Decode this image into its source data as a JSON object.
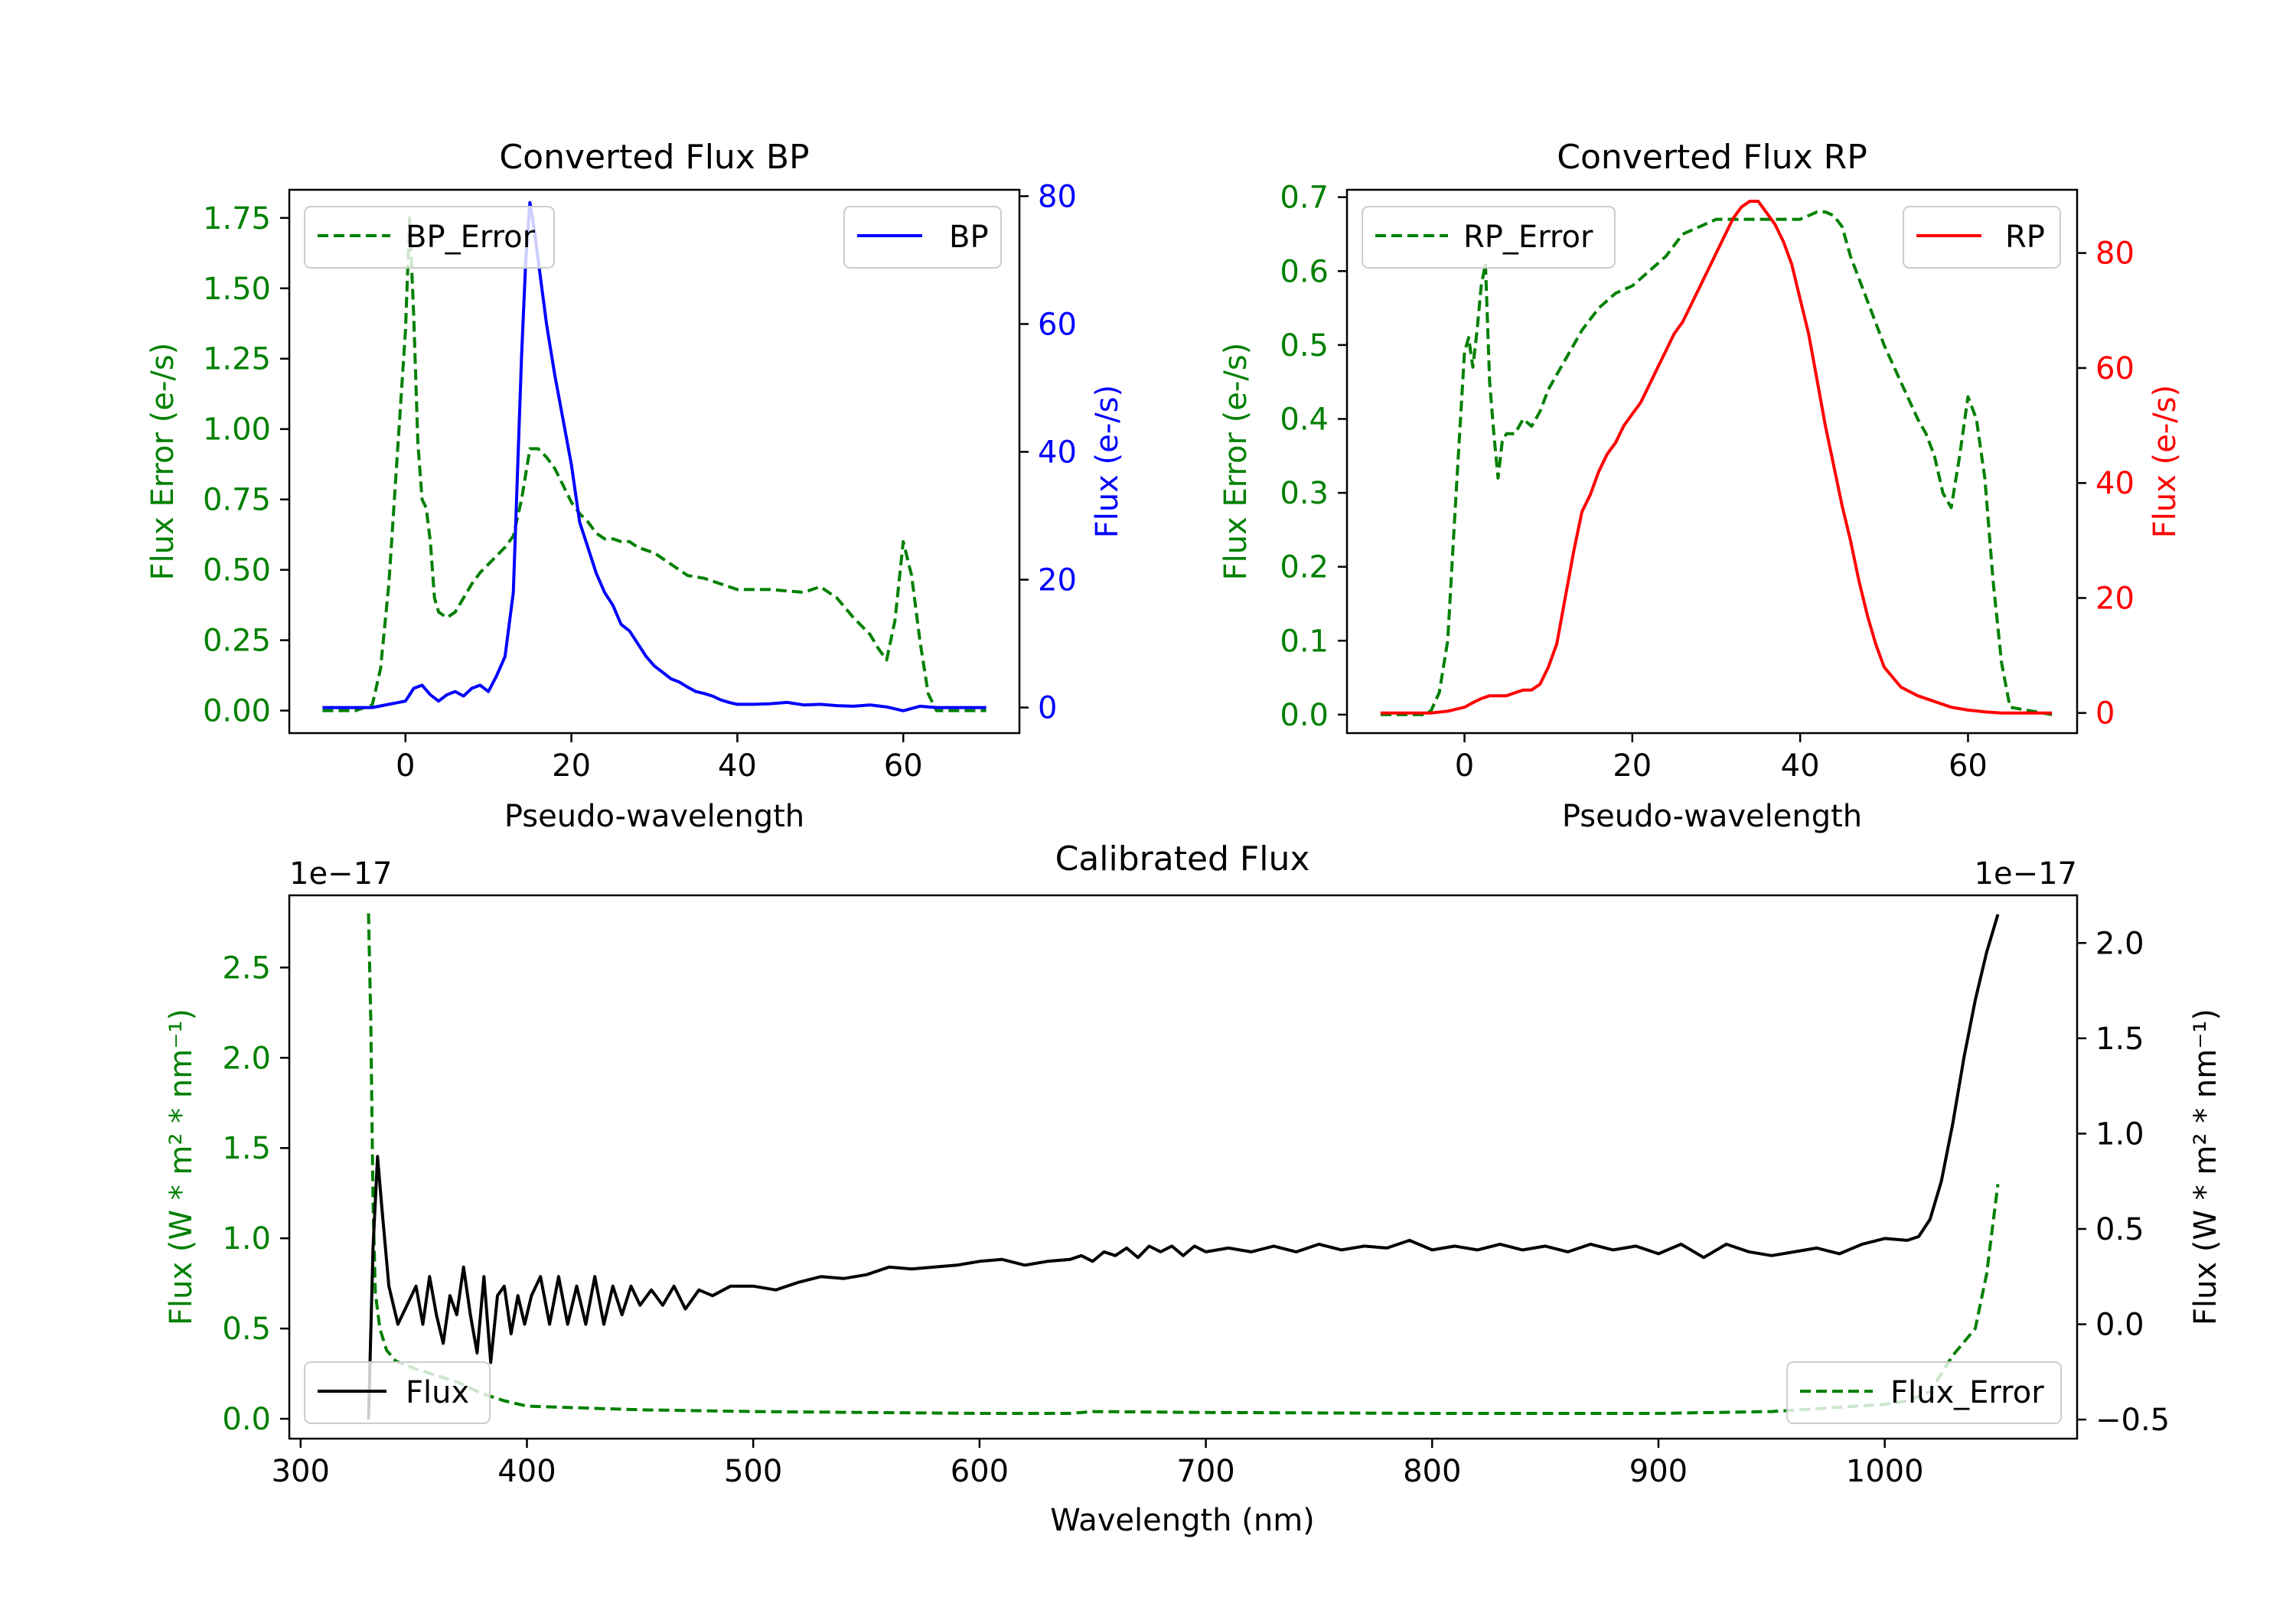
{
  "chart_data": [
    {
      "type": "line",
      "title": "Converted Flux BP",
      "xlabel": "Pseudo-wavelength",
      "ylabel_left": "Flux Error (e-/s)",
      "ylabel_right": "Flux (e-/s)",
      "xlim": [
        -14,
        74
      ],
      "ylim_left": [
        -0.08,
        1.85
      ],
      "ylim_right": [
        -4,
        81
      ],
      "xticks": [
        "0",
        "20",
        "40",
        "60"
      ],
      "xtick_values": [
        0,
        20,
        40,
        60
      ],
      "yticks_left": [
        "0.00",
        "0.25",
        "0.50",
        "0.75",
        "1.00",
        "1.25",
        "1.50",
        "1.75"
      ],
      "ytick_values_left": [
        0,
        0.25,
        0.5,
        0.75,
        1.0,
        1.25,
        1.5,
        1.75
      ],
      "yticks_right": [
        "0",
        "20",
        "40",
        "60",
        "80"
      ],
      "ytick_values_right": [
        0,
        20,
        40,
        60,
        80
      ],
      "left_color": "#008000",
      "right_color": "#0000ff",
      "series": [
        {
          "name": "BP_Error",
          "axis": "left",
          "color": "#008000",
          "style": "dashed",
          "x": [
            -10,
            -6,
            -4,
            -3,
            -2,
            -1,
            0,
            0.5,
            1,
            1.5,
            2,
            2.5,
            3,
            3.5,
            4,
            5,
            6,
            7,
            8,
            9,
            10,
            11,
            12,
            13,
            14,
            15,
            16,
            17,
            18,
            19,
            20,
            21,
            22,
            23,
            24,
            25,
            26,
            27,
            28,
            30,
            32,
            34,
            36,
            38,
            40,
            44,
            48,
            50,
            52,
            54,
            56,
            57,
            58,
            59,
            60,
            61,
            62,
            63,
            64,
            65,
            70
          ],
          "values": [
            0,
            0,
            0.02,
            0.15,
            0.45,
            0.9,
            1.35,
            1.75,
            1.4,
            0.95,
            0.75,
            0.72,
            0.6,
            0.4,
            0.35,
            0.33,
            0.35,
            0.4,
            0.45,
            0.49,
            0.52,
            0.55,
            0.58,
            0.62,
            0.75,
            0.93,
            0.93,
            0.9,
            0.86,
            0.8,
            0.74,
            0.7,
            0.67,
            0.63,
            0.61,
            0.61,
            0.6,
            0.6,
            0.58,
            0.56,
            0.52,
            0.48,
            0.47,
            0.45,
            0.43,
            0.43,
            0.42,
            0.44,
            0.4,
            0.33,
            0.27,
            0.22,
            0.18,
            0.32,
            0.6,
            0.48,
            0.25,
            0.06,
            0,
            0,
            0
          ]
        },
        {
          "name": "BP",
          "axis": "right",
          "color": "#0000ff",
          "style": "solid",
          "x": [
            -10,
            -4,
            -2,
            0,
            1,
            2,
            3,
            4,
            5,
            6,
            7,
            8,
            9,
            10,
            11,
            12,
            13,
            14,
            14.5,
            15,
            15.5,
            16,
            17,
            18,
            19,
            20,
            21,
            22,
            23,
            24,
            25,
            26,
            27,
            28,
            29,
            30,
            31,
            32,
            33,
            34,
            35,
            36,
            37,
            38,
            39,
            40,
            42,
            44,
            46,
            48,
            50,
            52,
            54,
            56,
            58,
            60,
            62,
            64,
            66,
            68,
            70
          ],
          "values": [
            0,
            0,
            0.5,
            1,
            3,
            3.5,
            2,
            1,
            2,
            2.5,
            1.8,
            3,
            3.5,
            2.5,
            5,
            8,
            18,
            55,
            70,
            79,
            75,
            70,
            60,
            52,
            45,
            38,
            29,
            25,
            21,
            18,
            16,
            13,
            12,
            10,
            8,
            6.5,
            5.5,
            4.5,
            4,
            3.2,
            2.5,
            2.2,
            1.8,
            1.2,
            0.8,
            0.5,
            0.5,
            0.6,
            0.8,
            0.4,
            0.5,
            0.3,
            0.2,
            0.4,
            0.1,
            -0.5,
            0.2,
            0,
            0,
            0,
            0
          ]
        }
      ],
      "legends": [
        {
          "label": "BP_Error",
          "position": "upper left"
        },
        {
          "label": "BP",
          "position": "upper right"
        }
      ]
    },
    {
      "type": "line",
      "title": "Converted Flux RP",
      "xlabel": "Pseudo-wavelength",
      "ylabel_left": "Flux Error (e-/s)",
      "ylabel_right": "Flux (e-/s)",
      "xlim": [
        -14,
        73
      ],
      "ylim_left": [
        -0.025,
        0.71
      ],
      "ylim_right": [
        -3.5,
        91
      ],
      "xticks": [
        "0",
        "20",
        "40",
        "60"
      ],
      "xtick_values": [
        0,
        20,
        40,
        60
      ],
      "yticks_left": [
        "0.0",
        "0.1",
        "0.2",
        "0.3",
        "0.4",
        "0.5",
        "0.6",
        "0.7"
      ],
      "ytick_values_left": [
        0,
        0.1,
        0.2,
        0.3,
        0.4,
        0.5,
        0.6,
        0.7
      ],
      "yticks_right": [
        "0",
        "20",
        "40",
        "60",
        "80"
      ],
      "ytick_values_right": [
        0,
        20,
        40,
        60,
        80
      ],
      "left_color": "#008000",
      "right_color": "#ff0000",
      "series": [
        {
          "name": "RP_Error",
          "axis": "left",
          "color": "#008000",
          "style": "dashed",
          "x": [
            -10,
            -5,
            -4,
            -3,
            -2,
            -1,
            0,
            0.5,
            1,
            1.5,
            2,
            2.5,
            3,
            3.5,
            4,
            4.5,
            5,
            6,
            7,
            8,
            9,
            10,
            11,
            12,
            13,
            14,
            16,
            18,
            20,
            22,
            24,
            26,
            28,
            30,
            32,
            34,
            36,
            38,
            40,
            41,
            42,
            43,
            44,
            45,
            46,
            48,
            50,
            52,
            54,
            55,
            56,
            57,
            58,
            59,
            60,
            61,
            62,
            63,
            64,
            65,
            70
          ],
          "values": [
            0,
            0,
            0.005,
            0.03,
            0.1,
            0.3,
            0.49,
            0.51,
            0.47,
            0.52,
            0.58,
            0.61,
            0.45,
            0.38,
            0.32,
            0.37,
            0.38,
            0.38,
            0.4,
            0.39,
            0.41,
            0.44,
            0.46,
            0.48,
            0.5,
            0.52,
            0.55,
            0.57,
            0.58,
            0.6,
            0.62,
            0.65,
            0.66,
            0.67,
            0.67,
            0.67,
            0.67,
            0.67,
            0.67,
            0.675,
            0.68,
            0.68,
            0.675,
            0.66,
            0.62,
            0.56,
            0.5,
            0.45,
            0.4,
            0.38,
            0.35,
            0.3,
            0.28,
            0.35,
            0.43,
            0.4,
            0.32,
            0.18,
            0.07,
            0.01,
            0
          ]
        },
        {
          "name": "RP",
          "axis": "right",
          "color": "#ff0000",
          "style": "solid",
          "x": [
            -10,
            -4,
            -2,
            0,
            1,
            2,
            3,
            4,
            5,
            6,
            7,
            8,
            9,
            10,
            11,
            12,
            13,
            14,
            15,
            16,
            17,
            18,
            19,
            20,
            21,
            22,
            23,
            24,
            25,
            26,
            27,
            28,
            29,
            30,
            31,
            32,
            33,
            34,
            35,
            36,
            37,
            38,
            39,
            40,
            41,
            42,
            43,
            44,
            45,
            46,
            47,
            48,
            49,
            50,
            52,
            54,
            56,
            58,
            60,
            62,
            64,
            66,
            70
          ],
          "values": [
            0,
            0,
            0.3,
            1,
            1.8,
            2.5,
            3,
            3,
            3,
            3.5,
            4,
            4,
            5,
            8,
            12,
            20,
            28,
            35,
            38,
            42,
            45,
            47,
            50,
            52,
            54,
            57,
            60,
            63,
            66,
            68,
            71,
            74,
            77,
            80,
            83,
            86,
            88,
            89,
            89,
            87,
            85,
            82,
            78,
            72,
            66,
            58,
            50,
            43,
            36,
            30,
            23,
            17,
            12,
            8,
            4.5,
            3,
            2,
            1,
            0.5,
            0.2,
            0,
            0,
            0
          ]
        }
      ],
      "legends": [
        {
          "label": "RP_Error",
          "position": "upper left"
        },
        {
          "label": "RP",
          "position": "upper right"
        }
      ]
    },
    {
      "type": "line",
      "title": "Calibrated Flux",
      "xlabel": "Wavelength (nm)",
      "ylabel_left": "Flux (W * m² * nm⁻¹)",
      "ylabel_right": "Flux (W * m² * nm⁻¹)",
      "offset_left": "1e−17",
      "offset_right": "1e−17",
      "xlim": [
        295,
        1085
      ],
      "ylim_left": [
        -0.11,
        2.9
      ],
      "ylim_right": [
        -0.6,
        2.25
      ],
      "xticks": [
        "300",
        "400",
        "500",
        "600",
        "700",
        "800",
        "900",
        "1000"
      ],
      "xtick_values": [
        300,
        400,
        500,
        600,
        700,
        800,
        900,
        1000
      ],
      "yticks_left": [
        "0.0",
        "0.5",
        "1.0",
        "1.5",
        "2.0",
        "2.5"
      ],
      "ytick_values_left": [
        0,
        0.5,
        1.0,
        1.5,
        2.0,
        2.5
      ],
      "yticks_right": [
        "−0.5",
        "0.0",
        "0.5",
        "1.0",
        "1.5",
        "2.0"
      ],
      "ytick_values_right": [
        -0.5,
        0,
        0.5,
        1.0,
        1.5,
        2.0
      ],
      "left_color": "#008000",
      "right_color": "#000000",
      "series": [
        {
          "name": "Flux_Error",
          "axis": "left",
          "color": "#008000",
          "style": "dashed",
          "x": [
            330,
            331,
            332,
            333,
            335,
            338,
            342,
            350,
            360,
            370,
            380,
            390,
            400,
            450,
            500,
            550,
            600,
            640,
            650,
            700,
            800,
            900,
            950,
            1000,
            1010,
            1020,
            1030,
            1040,
            1045,
            1050
          ],
          "values": [
            2.8,
            2.2,
            1.2,
            0.7,
            0.5,
            0.38,
            0.32,
            0.28,
            0.24,
            0.2,
            0.14,
            0.1,
            0.07,
            0.05,
            0.04,
            0.035,
            0.03,
            0.03,
            0.04,
            0.035,
            0.03,
            0.03,
            0.04,
            0.08,
            0.1,
            0.15,
            0.35,
            0.5,
            0.8,
            1.3
          ]
        },
        {
          "name": "Flux",
          "axis": "right",
          "color": "#000000",
          "style": "solid",
          "x": [
            330,
            332,
            334,
            336,
            339,
            343,
            347,
            351,
            354,
            357,
            360,
            363,
            366,
            369,
            372,
            375,
            378,
            381,
            384,
            387,
            390,
            393,
            396,
            399,
            402,
            406,
            410,
            414,
            418,
            422,
            426,
            430,
            434,
            438,
            442,
            446,
            450,
            455,
            460,
            465,
            470,
            476,
            482,
            490,
            500,
            510,
            520,
            530,
            540,
            550,
            560,
            570,
            580,
            590,
            600,
            610,
            620,
            630,
            640,
            645,
            650,
            655,
            660,
            665,
            670,
            675,
            680,
            685,
            690,
            695,
            700,
            710,
            720,
            730,
            740,
            750,
            760,
            770,
            780,
            790,
            800,
            810,
            820,
            830,
            840,
            850,
            860,
            870,
            880,
            890,
            900,
            910,
            920,
            930,
            940,
            950,
            960,
            970,
            980,
            990,
            1000,
            1010,
            1015,
            1020,
            1025,
            1030,
            1035,
            1040,
            1045,
            1050
          ],
          "values": [
            -0.5,
            0.4,
            0.88,
            0.6,
            0.2,
            0.0,
            0.1,
            0.2,
            0.0,
            0.25,
            0.05,
            -0.1,
            0.15,
            0.05,
            0.3,
            0.05,
            -0.15,
            0.25,
            -0.2,
            0.15,
            0.2,
            -0.05,
            0.15,
            0.0,
            0.15,
            0.25,
            0.0,
            0.25,
            0.0,
            0.2,
            0.0,
            0.25,
            0.0,
            0.2,
            0.05,
            0.2,
            0.1,
            0.18,
            0.1,
            0.2,
            0.08,
            0.18,
            0.15,
            0.2,
            0.2,
            0.18,
            0.22,
            0.25,
            0.24,
            0.26,
            0.3,
            0.29,
            0.3,
            0.31,
            0.33,
            0.34,
            0.31,
            0.33,
            0.34,
            0.36,
            0.33,
            0.38,
            0.36,
            0.4,
            0.35,
            0.41,
            0.38,
            0.41,
            0.36,
            0.41,
            0.38,
            0.4,
            0.38,
            0.41,
            0.38,
            0.42,
            0.39,
            0.41,
            0.4,
            0.44,
            0.39,
            0.41,
            0.39,
            0.42,
            0.39,
            0.41,
            0.38,
            0.42,
            0.39,
            0.41,
            0.37,
            0.42,
            0.35,
            0.42,
            0.38,
            0.36,
            0.38,
            0.4,
            0.37,
            0.42,
            0.45,
            0.44,
            0.46,
            0.55,
            0.75,
            1.05,
            1.4,
            1.7,
            1.95,
            2.15
          ]
        }
      ],
      "legends": [
        {
          "label": "Flux",
          "position": "lower left"
        },
        {
          "label": "Flux_Error",
          "position": "lower right"
        }
      ]
    }
  ]
}
